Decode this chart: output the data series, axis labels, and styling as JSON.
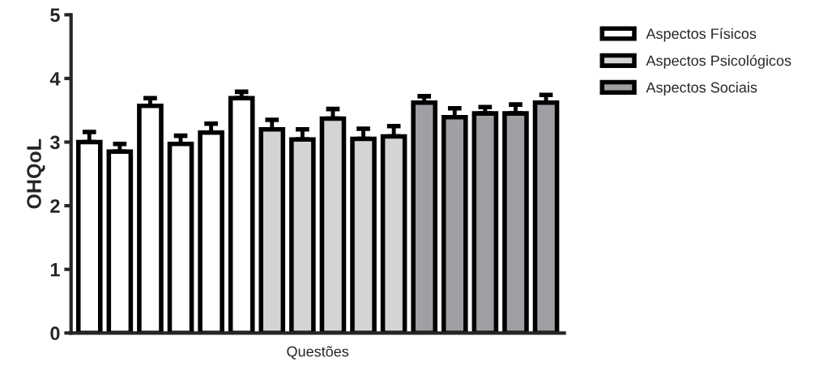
{
  "chart_data": {
    "type": "bar",
    "xlabel": "Questões",
    "ylabel": "OHQoL",
    "categories": [
      null,
      null,
      null,
      null,
      null,
      null,
      null,
      null,
      null,
      null,
      null,
      null,
      null,
      null,
      null,
      null
    ],
    "series": [
      {
        "name": "Aspectos Físicos",
        "color": "#ffffff",
        "values": [
          3.0,
          2.85,
          3.57,
          2.97,
          3.15,
          3.69,
          null,
          null,
          null,
          null,
          null,
          null,
          null,
          null,
          null,
          null
        ],
        "errors": [
          [
            3.0,
            3.16
          ],
          [
            2.85,
            2.97
          ],
          [
            3.57,
            3.69
          ],
          [
            2.97,
            3.1
          ],
          [
            3.15,
            3.29
          ],
          [
            3.69,
            3.79
          ],
          null,
          null,
          null,
          null,
          null,
          null,
          null,
          null,
          null,
          null
        ]
      },
      {
        "name": "Aspectos Psicológicos",
        "color": "#d4d4d4",
        "values": [
          null,
          null,
          null,
          null,
          null,
          null,
          3.2,
          3.04,
          3.37,
          3.05,
          3.09,
          null,
          null,
          null,
          null,
          null
        ],
        "errors": [
          null,
          null,
          null,
          null,
          null,
          null,
          [
            3.2,
            3.35
          ],
          [
            3.04,
            3.2
          ],
          [
            3.37,
            3.52
          ],
          [
            3.05,
            3.21
          ],
          [
            3.09,
            3.25
          ],
          null,
          null,
          null,
          null,
          null
        ]
      },
      {
        "name": "Aspectos Sociais",
        "color": "#a09fa3",
        "values": [
          null,
          null,
          null,
          null,
          null,
          null,
          null,
          null,
          null,
          null,
          null,
          3.62,
          3.39,
          3.45,
          3.45,
          3.62
        ],
        "errors": [
          null,
          null,
          null,
          null,
          null,
          null,
          null,
          null,
          null,
          null,
          null,
          [
            3.62,
            3.72
          ],
          [
            3.39,
            3.53
          ],
          [
            3.45,
            3.55
          ],
          [
            3.45,
            3.59
          ],
          [
            3.62,
            3.74
          ]
        ]
      }
    ],
    "ylim": [
      0,
      5
    ],
    "yticks": [
      0,
      1,
      2,
      3,
      4,
      5
    ],
    "legend": "top right",
    "grid": false
  }
}
